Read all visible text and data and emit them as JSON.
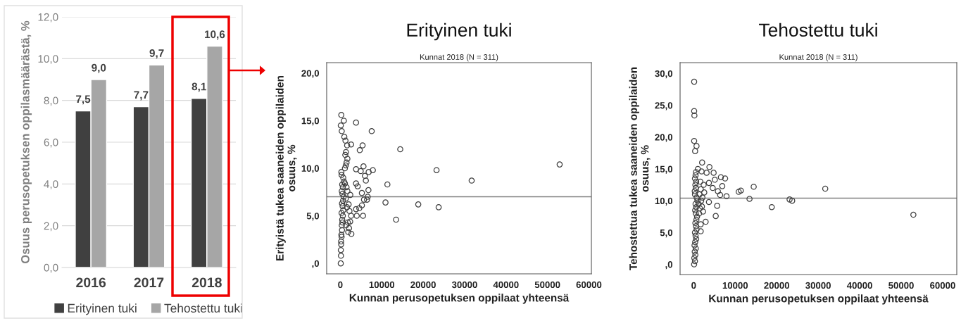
{
  "chart_data": [
    {
      "type": "bar",
      "ylabel": "Osuus perusopetuksen oppilasmäärästä, %",
      "categories": [
        "2016",
        "2017",
        "2018"
      ],
      "series": [
        {
          "name": "Erityinen tuki",
          "color": "#404040",
          "values": [
            7.5,
            7.7,
            8.1
          ],
          "value_labels": [
            "7,5",
            "7,7",
            "8,1"
          ]
        },
        {
          "name": "Tehostettu tuki",
          "color": "#a6a6a6",
          "values": [
            9.0,
            9.7,
            10.6
          ],
          "value_labels": [
            "9,0",
            "9,7",
            "10,6"
          ]
        }
      ],
      "ylim": [
        0,
        12
      ],
      "yticks": [
        {
          "value": 0,
          "label": "0,0"
        },
        {
          "value": 2,
          "label": "2,0"
        },
        {
          "value": 4,
          "label": "4,0"
        },
        {
          "value": 6,
          "label": "6,0"
        },
        {
          "value": 8,
          "label": "8,0"
        },
        {
          "value": 10,
          "label": "10,0"
        },
        {
          "value": 12,
          "label": "12,0"
        }
      ],
      "grid": "y",
      "legend": "bottom"
    },
    {
      "type": "scatter",
      "title": "Erityinen tuki",
      "subtitle": "Kunnat 2018 (N = 311)",
      "xlabel": "Kunnan perusopetuksen oppilaat yhteensä",
      "ylabel": "Erityistä tukea saaneiden oppilaiden osuus, %",
      "marker": "circle",
      "series": [
        {
          "color": "#404040",
          "x": [
            52940,
            23220,
            31700,
            14460,
            11360,
            10900,
            18810,
            23730,
            13450,
            7570,
            3790,
            5370,
            4690,
            5590,
            7850,
            6840,
            4920,
            3790,
            5930,
            6160,
            3790,
            4180,
            6780,
            5200,
            6610,
            6440,
            5710,
            5200,
            4580,
            3790,
            5480,
            3960,
            2660,
            2370,
            2600,
            2600,
            1640,
            850,
            230,
            110,
            340,
            960,
            1240,
            1360,
            100,
            150,
            120,
            200,
            180,
            300,
            250,
            400,
            350,
            500,
            450,
            600,
            300,
            700,
            550,
            400,
            650,
            800,
            500,
            350,
            600,
            450,
            900,
            700,
            300,
            250,
            1100,
            1300,
            1500,
            1700,
            1200,
            1900,
            2100,
            1400,
            1800,
            2200,
            1600,
            2000,
            1300,
            2400,
            1700,
            1500,
            1100
          ],
          "values": [
            10.4,
            9.8,
            8.7,
            12.0,
            8.3,
            6.4,
            6.2,
            5.9,
            4.6,
            13.9,
            14.8,
            12.4,
            11.9,
            10.2,
            9.8,
            9.6,
            9.7,
            9.9,
            9.2,
            8.7,
            8.4,
            8.1,
            7.7,
            7.4,
            7.0,
            6.7,
            6.7,
            6.1,
            5.8,
            5.7,
            5.0,
            5.0,
            3.1,
            4.4,
            5.0,
            12.5,
            12.4,
            15.0,
            15.6,
            14.5,
            13.9,
            13.3,
            12.9,
            11.7,
            0.0,
            0.8,
            1.4,
            2.0,
            2.3,
            2.8,
            3.0,
            3.5,
            4.0,
            4.3,
            4.6,
            5.0,
            5.3,
            5.6,
            6.0,
            6.3,
            6.6,
            7.0,
            7.3,
            7.6,
            8.0,
            8.3,
            8.6,
            9.0,
            9.3,
            9.6,
            10.0,
            10.3,
            10.6,
            11.0,
            11.4,
            3.3,
            3.7,
            4.0,
            4.3,
            5.5,
            5.9,
            6.2,
            6.8,
            7.2,
            7.6,
            8.0,
            8.4
          ]
        }
      ],
      "xlim": [
        -3300,
        60600
      ],
      "xticks": [
        0,
        10000,
        20000,
        30000,
        40000,
        50000,
        60000
      ],
      "ylim": [
        -1.1,
        21.1
      ],
      "yticks": [
        {
          "value": 0,
          "label": ",0"
        },
        {
          "value": 5,
          "label": "5,0"
        },
        {
          "value": 10,
          "label": "10,0"
        },
        {
          "value": 15,
          "label": "15,0"
        },
        {
          "value": 20,
          "label": "20,0"
        }
      ],
      "ref_lines": [
        {
          "axis": "y",
          "value": 7.0,
          "color": "#808080"
        }
      ]
    },
    {
      "type": "scatter",
      "title": "Tehostettu tuki",
      "subtitle": "Kunnat 2018 (N = 311)",
      "xlabel": "Kunnan perusopetuksen oppilaat yhteensä",
      "ylabel": "Tehostettua tukea saaneiden oppilaiden osuus, %",
      "marker": "circle",
      "series": [
        {
          "color": "#404040",
          "x": [
            52940,
            31700,
            14460,
            11360,
            10850,
            13450,
            23110,
            23730,
            18810,
            7910,
            7570,
            6550,
            6890,
            3790,
            2030,
            5310,
            5650,
            2880,
            1690,
            1690,
            110,
            110,
            170,
            110,
            680,
            340,
            4800,
            5080,
            4580,
            5820,
            6380,
            3110,
            3670,
            2540,
            3670,
            2260,
            1980,
            100,
            300,
            150,
            400,
            250,
            500,
            200,
            350,
            600,
            450,
            300,
            700,
            550,
            400,
            650,
            800,
            500,
            350,
            600,
            450,
            900,
            700,
            300,
            250,
            500,
            400,
            600,
            300,
            450,
            550,
            1000,
            1300,
            1500,
            1200,
            1800,
            2100,
            1400,
            1700,
            2400,
            1600,
            1900
          ],
          "values": [
            7.8,
            11.9,
            12.2,
            11.6,
            11.4,
            10.3,
            10.2,
            10.0,
            9.0,
            10.7,
            13.5,
            13.7,
            12.3,
            15.3,
            16.0,
            7.6,
            9.2,
            6.7,
            6.3,
            5.2,
            28.7,
            24.1,
            23.4,
            19.4,
            18.6,
            17.8,
            14.4,
            13.3,
            12.0,
            11.5,
            10.9,
            14.4,
            12.8,
            11.3,
            9.8,
            8.3,
            9.1,
            0.0,
            0.5,
            1.0,
            1.5,
            2.0,
            2.5,
            3.0,
            3.5,
            4.0,
            4.5,
            5.0,
            5.5,
            6.0,
            6.5,
            7.0,
            7.5,
            8.0,
            8.5,
            9.0,
            9.5,
            10.0,
            10.5,
            11.0,
            11.5,
            12.0,
            12.5,
            13.0,
            13.5,
            14.0,
            14.5,
            15.0,
            8.0,
            8.8,
            9.5,
            10.0,
            10.5,
            11.0,
            11.8,
            12.5,
            13.0,
            14.6
          ]
        }
      ],
      "xlim": [
        -3280,
        63400
      ],
      "xticks": [
        0,
        10000,
        20000,
        30000,
        40000,
        50000,
        60000
      ],
      "ylim": [
        -1.6,
        31.7
      ],
      "yticks": [
        {
          "value": 0,
          "label": ",0"
        },
        {
          "value": 5,
          "label": "5,0"
        },
        {
          "value": 10,
          "label": "10,0"
        },
        {
          "value": 15,
          "label": "15,0"
        },
        {
          "value": 20,
          "label": "20,0"
        },
        {
          "value": 25,
          "label": "25,0"
        },
        {
          "value": 30,
          "label": "30,0"
        }
      ],
      "ref_lines": [
        {
          "axis": "y",
          "value": 10.4,
          "color": "#808080"
        }
      ]
    }
  ]
}
